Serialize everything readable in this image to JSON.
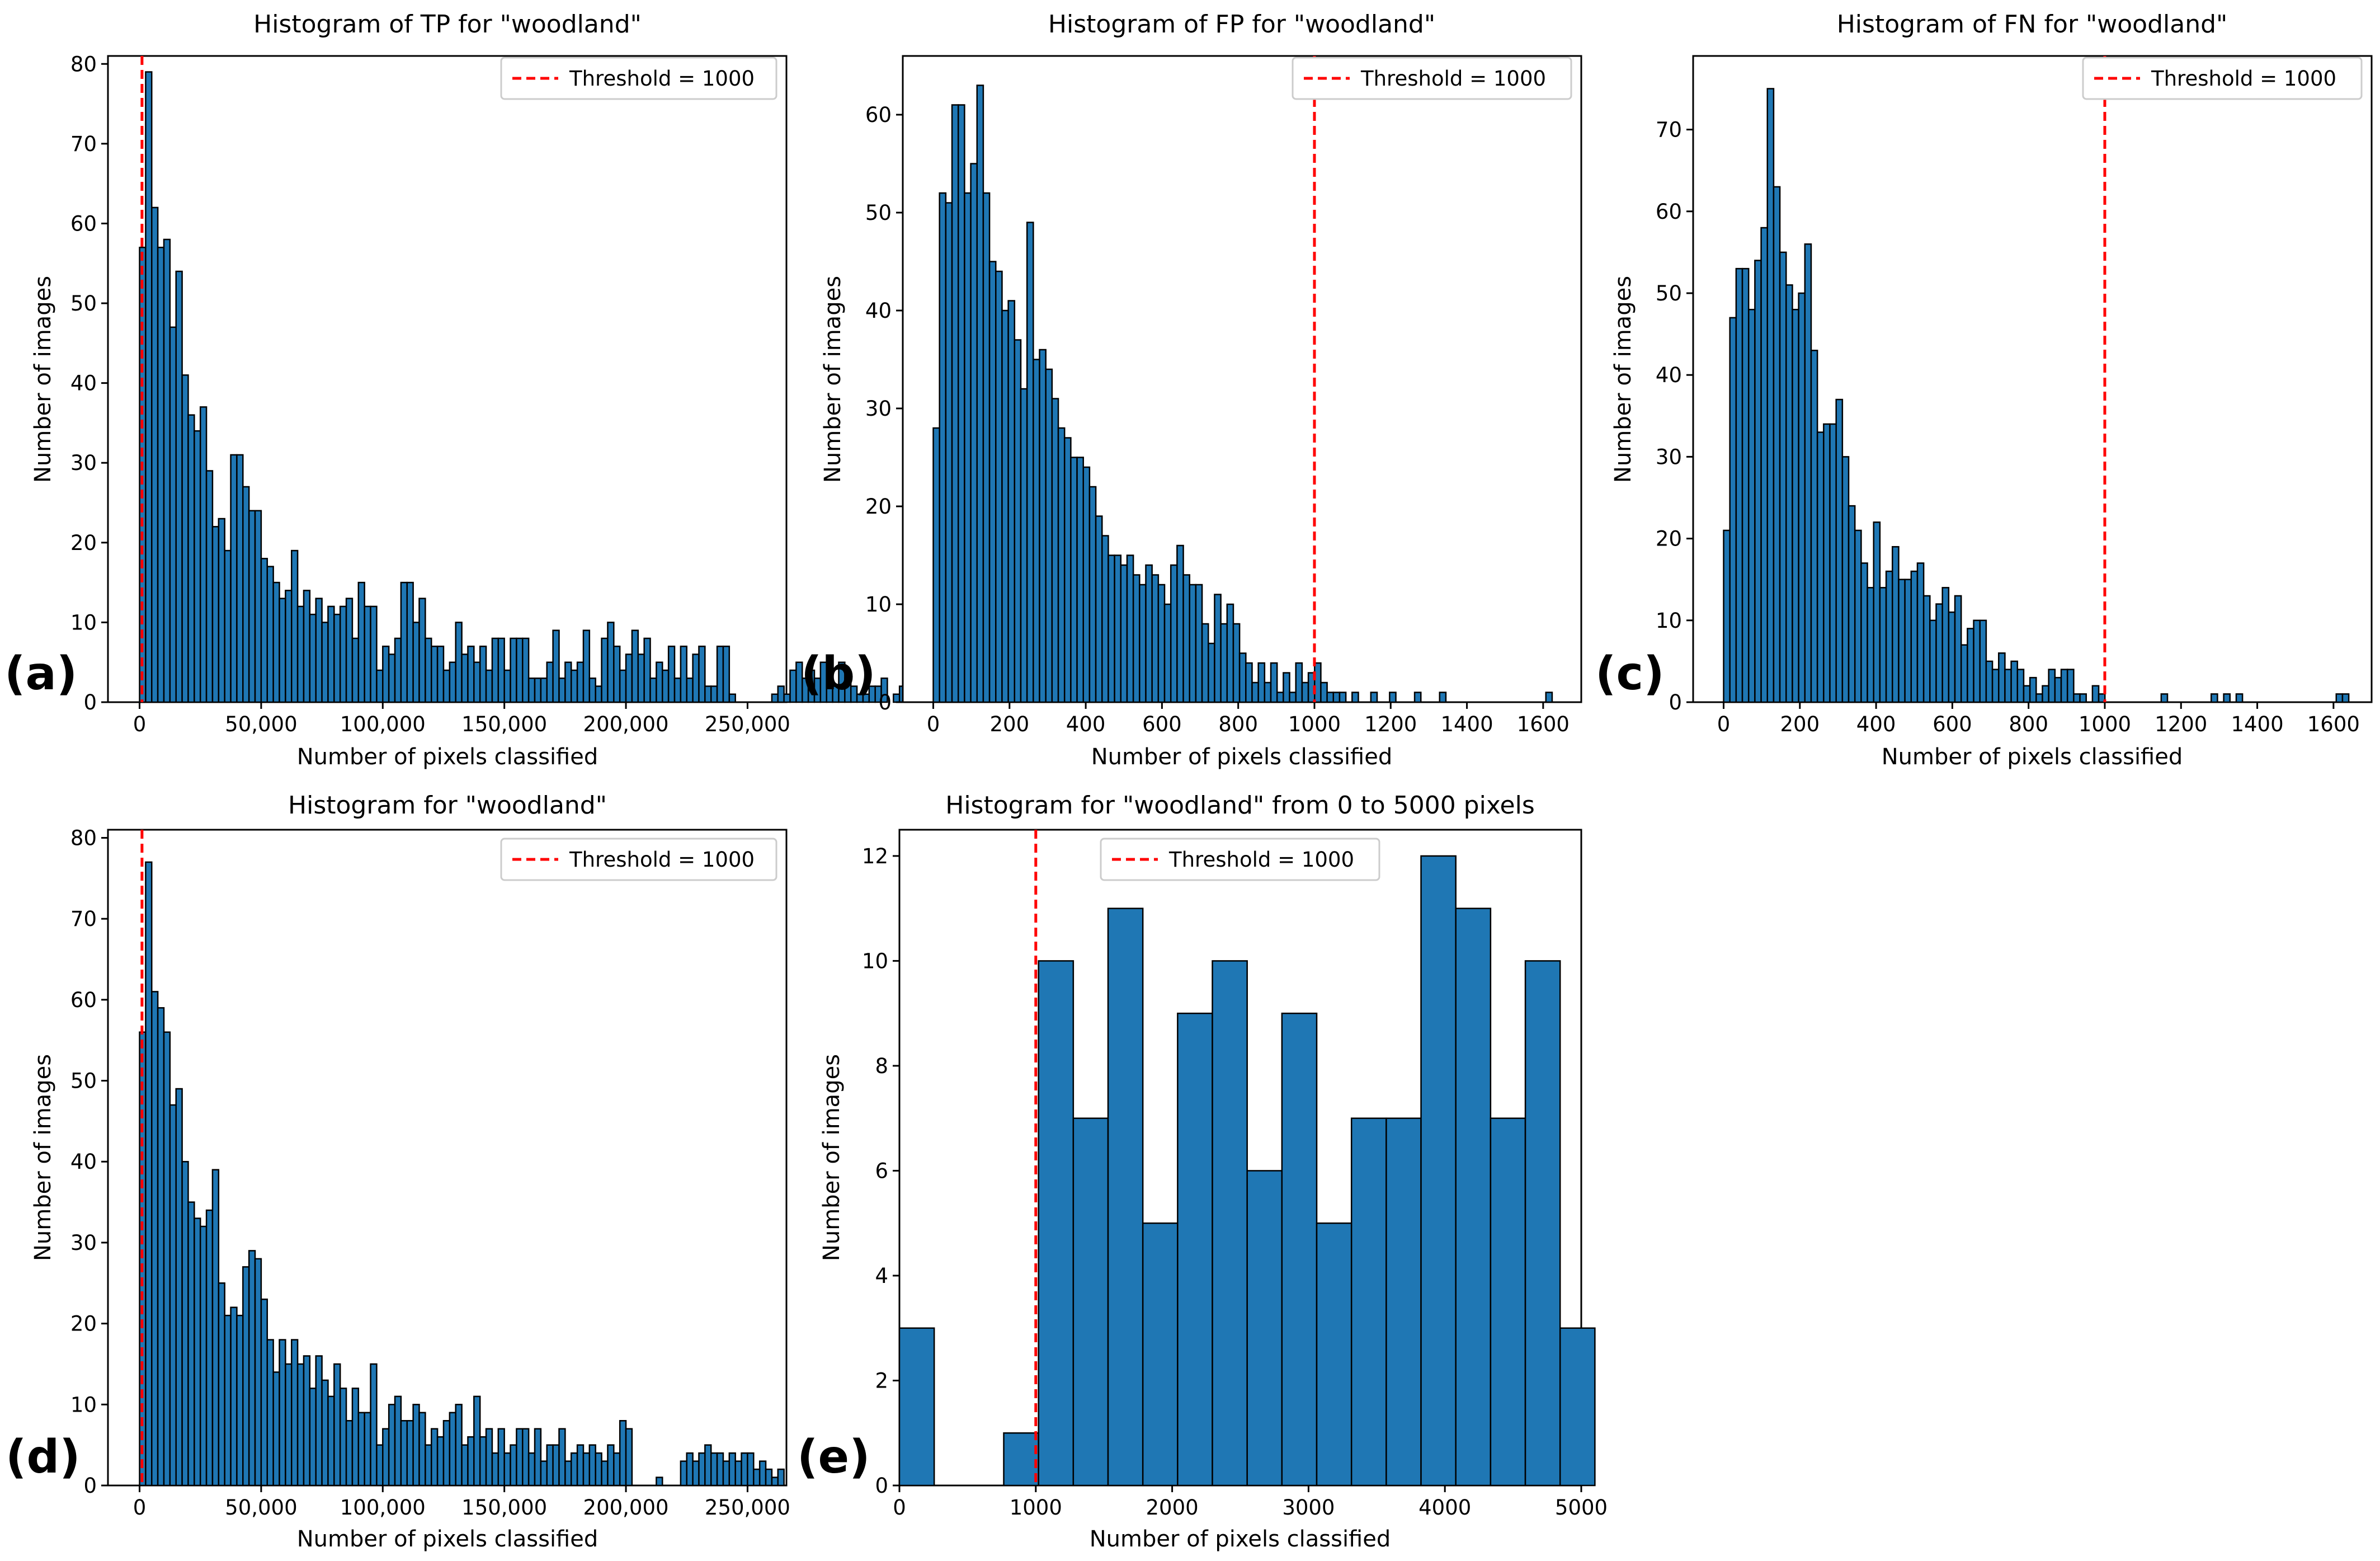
{
  "figure": {
    "panel_labels": [
      "(a)",
      "(b)",
      "(c)",
      "(d)",
      "(e)"
    ]
  },
  "colors": {
    "bar_fill": "#1f77b4",
    "bar_edge": "#000000",
    "threshold_line": "#ff0000",
    "axes": "#000000"
  },
  "chart_data": [
    {
      "id": "a",
      "type": "bar",
      "panel_label": "(a)",
      "title": "Histogram of TP for \"woodland\"",
      "xlabel": "Number of pixels classified",
      "ylabel": "Number of images",
      "xlim": [
        -13000,
        266000
      ],
      "ylim": [
        0,
        81
      ],
      "xticks": [
        0,
        50000,
        100000,
        150000,
        200000,
        250000
      ],
      "xtick_labels": [
        "0",
        "50,000",
        "100,000",
        "150,000",
        "200,000",
        "250,000"
      ],
      "yticks": [
        0,
        10,
        20,
        30,
        40,
        50,
        60,
        70,
        80
      ],
      "bin_start": 0,
      "bin_width": 2500,
      "values": [
        57,
        79,
        62,
        57,
        58,
        47,
        54,
        41,
        36,
        34,
        37,
        29,
        22,
        23,
        19,
        31,
        31,
        27,
        24,
        24,
        18,
        17,
        15,
        13,
        14,
        19,
        12,
        14,
        11,
        13,
        10,
        12,
        11,
        12,
        13,
        8,
        15,
        12,
        12,
        4,
        7,
        6,
        8,
        15,
        15,
        10,
        13,
        8,
        7,
        7,
        4,
        5,
        10,
        6,
        7,
        5,
        7,
        4,
        8,
        8,
        4,
        8,
        8,
        8,
        3,
        3,
        3,
        5,
        9,
        3,
        5,
        4,
        5,
        9,
        3,
        2,
        8,
        10,
        7,
        4,
        6,
        9,
        6,
        8,
        3,
        5,
        4,
        7,
        3,
        7,
        3,
        6,
        7,
        2,
        2,
        7,
        7,
        1,
        0,
        0,
        0,
        0,
        0,
        0,
        1,
        2,
        1,
        4,
        5,
        3,
        4,
        3,
        5,
        4,
        2,
        5,
        3,
        2,
        1,
        1,
        2,
        2,
        3,
        0,
        1,
        2
      ],
      "threshold": 1000,
      "legend_label": "Threshold = 1000",
      "legend_loc": "upper right"
    },
    {
      "id": "b",
      "type": "bar",
      "panel_label": "(b)",
      "title": "Histogram of FP for \"woodland\"",
      "xlabel": "Number of pixels classified",
      "ylabel": "Number of images",
      "xlim": [
        -80,
        1700
      ],
      "ylim": [
        0,
        66
      ],
      "xticks": [
        0,
        200,
        400,
        600,
        800,
        1000,
        1200,
        1400,
        1600
      ],
      "xtick_labels": [
        "0",
        "200",
        "400",
        "600",
        "800",
        "1000",
        "1200",
        "1400",
        "1600"
      ],
      "yticks": [
        0,
        10,
        20,
        30,
        40,
        50,
        60
      ],
      "bin_start": 0,
      "bin_width": 16.4,
      "values": [
        28,
        52,
        51,
        61,
        61,
        52,
        55,
        63,
        52,
        45,
        44,
        40,
        41,
        37,
        32,
        49,
        35,
        36,
        34,
        31,
        28,
        27,
        25,
        25,
        24,
        22,
        19,
        17,
        15,
        15,
        14,
        15,
        13,
        12,
        14,
        13,
        12,
        10,
        14,
        16,
        13,
        12,
        12,
        8,
        6,
        11,
        8,
        10,
        8,
        5,
        4,
        2,
        4,
        2,
        4,
        1,
        3,
        1,
        4,
        2,
        3,
        4,
        2,
        1,
        1,
        1,
        0,
        1,
        0,
        0,
        1,
        0,
        0,
        1,
        0,
        0,
        0,
        1,
        0,
        0,
        0,
        1,
        0,
        0,
        0,
        0,
        0,
        0,
        0,
        0,
        0,
        0,
        0,
        0,
        0,
        0,
        0,
        0,
        1,
        0
      ],
      "threshold": 1000,
      "legend_label": "Threshold = 1000",
      "legend_loc": "upper right"
    },
    {
      "id": "c",
      "type": "bar",
      "panel_label": "(c)",
      "title": "Histogram of FN for \"woodland\"",
      "xlabel": "Number of pixels classified",
      "ylabel": "Number of images",
      "xlim": [
        -80,
        1700
      ],
      "ylim": [
        0,
        79
      ],
      "xticks": [
        0,
        200,
        400,
        600,
        800,
        1000,
        1200,
        1400,
        1600
      ],
      "xtick_labels": [
        "0",
        "200",
        "400",
        "600",
        "800",
        "1000",
        "1200",
        "1400",
        "1600"
      ],
      "yticks": [
        0,
        10,
        20,
        30,
        40,
        50,
        60,
        70
      ],
      "bin_start": 0,
      "bin_width": 16.4,
      "values": [
        21,
        47,
        53,
        53,
        48,
        54,
        58,
        75,
        63,
        55,
        51,
        48,
        50,
        56,
        43,
        33,
        34,
        34,
        37,
        30,
        24,
        21,
        17,
        14,
        22,
        14,
        16,
        19,
        15,
        15,
        16,
        17,
        13,
        10,
        12,
        14,
        11,
        13,
        7,
        9,
        10,
        10,
        5,
        4,
        6,
        4,
        5,
        4,
        2,
        3,
        1,
        2,
        4,
        3,
        4,
        4,
        1,
        1,
        0,
        2,
        1,
        0,
        0,
        0,
        0,
        0,
        0,
        0,
        0,
        0,
        1,
        0,
        0,
        0,
        0,
        0,
        0,
        0,
        1,
        0,
        1,
        0,
        1,
        0,
        0,
        0,
        0,
        0,
        0,
        0,
        0,
        0,
        0,
        0,
        0,
        0,
        0,
        0,
        1,
        1
      ],
      "threshold": 1000,
      "legend_label": "Threshold = 1000",
      "legend_loc": "upper right"
    },
    {
      "id": "d",
      "type": "bar",
      "panel_label": "(d)",
      "title": "Histogram for \"woodland\"",
      "xlabel": "Number of pixels classified",
      "ylabel": "Number of images",
      "xlim": [
        -13000,
        266000
      ],
      "ylim": [
        0,
        81
      ],
      "xticks": [
        0,
        50000,
        100000,
        150000,
        200000,
        250000
      ],
      "xtick_labels": [
        "0",
        "50,000",
        "100,000",
        "150,000",
        "200,000",
        "250,000"
      ],
      "yticks": [
        0,
        10,
        20,
        30,
        40,
        50,
        60,
        70,
        80
      ],
      "bin_start": 0,
      "bin_width": 2500,
      "values": [
        56,
        77,
        61,
        59,
        56,
        47,
        49,
        40,
        35,
        33,
        32,
        34,
        39,
        25,
        21,
        22,
        21,
        27,
        29,
        28,
        23,
        18,
        14,
        18,
        15,
        18,
        15,
        16,
        12,
        16,
        13,
        11,
        15,
        12,
        8,
        12,
        9,
        9,
        15,
        5,
        7,
        10,
        11,
        8,
        8,
        10,
        9,
        5,
        7,
        6,
        8,
        9,
        10,
        5,
        6,
        11,
        6,
        7,
        4,
        7,
        4,
        5,
        7,
        7,
        4,
        7,
        3,
        5,
        5,
        7,
        3,
        4,
        5,
        4,
        5,
        4,
        3,
        5,
        4,
        8,
        7,
        0,
        0,
        0,
        0,
        1,
        0,
        0,
        0,
        3,
        4,
        3,
        4,
        5,
        4,
        4,
        3,
        4,
        3,
        4,
        4,
        2,
        3,
        2,
        1,
        2
      ],
      "threshold": 1000,
      "legend_label": "Threshold = 1000",
      "legend_loc": "upper right"
    },
    {
      "id": "e",
      "type": "bar",
      "panel_label": "(e)",
      "title": "Histogram for \"woodland\" from 0 to 5000 pixels",
      "xlabel": "Number of pixels classified",
      "ylabel": "Number of images",
      "xlim": [
        0,
        5000
      ],
      "ylim": [
        0,
        12.5
      ],
      "xticks": [
        0,
        1000,
        2000,
        3000,
        4000,
        5000
      ],
      "xtick_labels": [
        "0",
        "1000",
        "2000",
        "3000",
        "4000",
        "5000"
      ],
      "yticks": [
        0,
        2,
        4,
        6,
        8,
        10,
        12
      ],
      "bin_start": 0,
      "bin_width": 255,
      "values": [
        3,
        0,
        0,
        1,
        10,
        7,
        11,
        5,
        9,
        10,
        6,
        9,
        5,
        7,
        7,
        12,
        11,
        7,
        10,
        3
      ],
      "threshold": 1000,
      "legend_label": "Threshold = 1000",
      "legend_loc": "upper center"
    }
  ]
}
